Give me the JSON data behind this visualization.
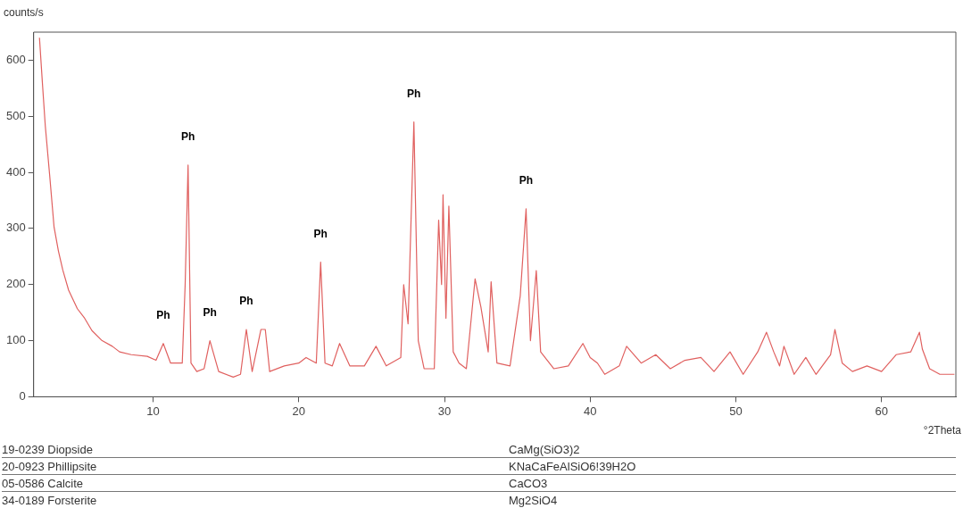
{
  "chart_data": [
    {
      "type": "line",
      "ylabel": "counts/s",
      "xlabel": "°2Theta",
      "xlim": [
        1.8,
        65.1
      ],
      "ylim": [
        0,
        650
      ],
      "xticks": [
        10,
        20,
        30,
        40,
        50,
        60
      ],
      "yticks": [
        0,
        100,
        200,
        300,
        400,
        500,
        600
      ],
      "grid": false,
      "legend": false,
      "marker": "none",
      "line_style": "solid",
      "x": [
        2.2,
        2.4,
        2.6,
        2.9,
        3.2,
        3.5,
        3.8,
        4.2,
        4.8,
        5.3,
        5.8,
        6.5,
        7.2,
        7.7,
        8.5,
        9.6,
        10.2,
        10.7,
        11.2,
        12.0,
        12.2,
        12.4,
        12.6,
        13.0,
        13.5,
        13.9,
        14.5,
        15.5,
        16.0,
        16.4,
        16.8,
        17.4,
        17.7,
        18.0,
        19.0,
        20.0,
        20.5,
        21.2,
        21.5,
        21.8,
        22.3,
        22.8,
        23.5,
        24.5,
        25.3,
        26.0,
        27.0,
        27.2,
        27.5,
        27.9,
        28.2,
        28.6,
        29.3,
        29.6,
        29.8,
        29.9,
        30.1,
        30.3,
        30.6,
        31.0,
        31.5,
        32.1,
        32.5,
        33.0,
        33.2,
        33.6,
        34.5,
        35.2,
        35.6,
        35.9,
        36.3,
        36.6,
        37.5,
        38.5,
        39.5,
        40.0,
        40.5,
        41.0,
        42.0,
        42.5,
        43.5,
        44.5,
        45.5,
        46.5,
        47.6,
        48.5,
        49.6,
        50.5,
        51.5,
        52.1,
        52.6,
        53.0,
        53.3,
        54.0,
        54.8,
        55.5,
        56.5,
        56.8,
        57.3,
        58.0,
        59.0,
        60.0,
        61.0,
        62.0,
        62.6,
        62.8,
        63.3,
        64.0,
        65.0
      ],
      "series": [
        {
          "color": "#e0605f",
          "values": [
            640,
            560,
            483,
            395,
            303,
            260,
            226,
            190,
            157,
            140,
            118,
            100,
            90,
            80,
            75,
            72,
            65,
            95,
            60,
            60,
            200,
            413,
            60,
            45,
            50,
            100,
            45,
            35,
            40,
            120,
            45,
            120,
            120,
            45,
            55,
            60,
            70,
            60,
            240,
            60,
            55,
            95,
            55,
            55,
            90,
            55,
            70,
            200,
            130,
            490,
            100,
            50,
            50,
            315,
            200,
            360,
            140,
            340,
            80,
            60,
            50,
            210,
            160,
            80,
            205,
            60,
            55,
            180,
            335,
            100,
            225,
            80,
            50,
            55,
            95,
            70,
            60,
            40,
            55,
            90,
            60,
            75,
            50,
            65,
            70,
            45,
            80,
            40,
            80,
            115,
            80,
            55,
            90,
            40,
            70,
            40,
            75,
            120,
            60,
            45,
            55,
            45,
            75,
            80,
            115,
            85,
            50,
            40,
            40
          ]
        }
      ],
      "annotations": [
        {
          "text": "Ph",
          "x": 10.7,
          "y": 95
        },
        {
          "text": "Ph",
          "x": 12.4,
          "y": 413
        },
        {
          "text": "Ph",
          "x": 13.9,
          "y": 100
        },
        {
          "text": "Ph",
          "x": 16.4,
          "y": 120
        },
        {
          "text": "Ph",
          "x": 21.5,
          "y": 240
        },
        {
          "text": "Ph",
          "x": 27.9,
          "y": 490
        },
        {
          "text": "Ph",
          "x": 35.6,
          "y": 335
        }
      ]
    },
    {
      "type": "other",
      "annotations": [
        "19-0239 Diopside",
        "CaMg(SiO3)2",
        "20-0923 Phillipsite",
        "KNaCaFeAlSiO6!39H2O",
        "05-0586 Calcite",
        "CaCO3",
        "34-0189 Forsterite",
        "Mg2SiO4"
      ]
    }
  ]
}
